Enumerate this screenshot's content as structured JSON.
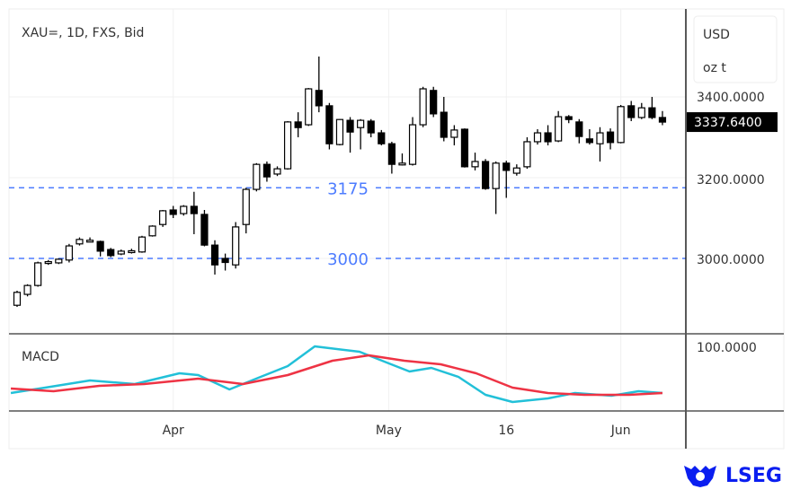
{
  "header": {
    "title": "XAU=, 1D, FXS, Bid"
  },
  "axis": {
    "currency": "USD",
    "unit": "oz t",
    "price_labels": [
      "3400.0000",
      "3200.0000",
      "3000.0000"
    ],
    "last_price": "3337.6400",
    "macd_label": "MACD",
    "macd_tick": "100.0000"
  },
  "brand": {
    "name": "LSEG"
  },
  "chart_data": [
    {
      "type": "candlestick",
      "title": "XAU=, 1D, FXS, Bid",
      "ylabel": "USD oz t",
      "ylim": [
        2830,
        3540
      ],
      "yticks": [
        3000,
        3200,
        3400
      ],
      "xticks": [
        {
          "label": "Apr",
          "index": 15
        },
        {
          "label": "May",
          "index": 35.7
        },
        {
          "label": "16",
          "index": 47
        },
        {
          "label": "Jun",
          "index": 58
        }
      ],
      "hlines": [
        {
          "value": 3175,
          "label": "3175",
          "color": "#4d7cff"
        },
        {
          "value": 3000,
          "label": "3000",
          "color": "#4d7cff"
        }
      ],
      "last": 3337.64,
      "ohlc": [
        [
          2884,
          2920,
          2880,
          2916
        ],
        [
          2911,
          2936,
          2906,
          2933
        ],
        [
          2933,
          2992,
          2930,
          2989
        ],
        [
          2990,
          2996,
          2984,
          2992
        ],
        [
          2989,
          3000,
          2986,
          2998
        ],
        [
          2996,
          3036,
          2990,
          3031
        ],
        [
          3036,
          3052,
          3032,
          3047
        ],
        [
          3044,
          3052,
          3040,
          3045
        ],
        [
          3042,
          3044,
          3005,
          3018
        ],
        [
          3022,
          3026,
          3003,
          3007
        ],
        [
          3011,
          3022,
          3008,
          3018
        ],
        [
          3018,
          3024,
          3012,
          3019
        ],
        [
          3016,
          3056,
          3014,
          3053
        ],
        [
          3056,
          3082,
          3054,
          3080
        ],
        [
          3084,
          3120,
          3078,
          3118
        ],
        [
          3120,
          3130,
          3100,
          3109
        ],
        [
          3111,
          3132,
          3106,
          3129
        ],
        [
          3129,
          3165,
          3060,
          3111
        ],
        [
          3109,
          3120,
          3030,
          3033
        ],
        [
          3033,
          3045,
          2960,
          2984
        ],
        [
          3000,
          3012,
          2970,
          2990
        ],
        [
          2984,
          3090,
          2975,
          3078
        ],
        [
          3084,
          3175,
          3062,
          3171
        ],
        [
          3171,
          3236,
          3166,
          3233
        ],
        [
          3233,
          3240,
          3190,
          3202
        ],
        [
          3209,
          3228,
          3204,
          3222
        ],
        [
          3222,
          3340,
          3220,
          3338
        ],
        [
          3338,
          3362,
          3300,
          3324
        ],
        [
          3331,
          3422,
          3328,
          3420
        ],
        [
          3416,
          3500,
          3362,
          3378
        ],
        [
          3378,
          3385,
          3270,
          3284
        ],
        [
          3282,
          3345,
          3280,
          3344
        ],
        [
          3342,
          3350,
          3262,
          3313
        ],
        [
          3324,
          3345,
          3270,
          3342
        ],
        [
          3340,
          3345,
          3300,
          3311
        ],
        [
          3311,
          3318,
          3280,
          3284
        ],
        [
          3284,
          3289,
          3210,
          3233
        ],
        [
          3236,
          3260,
          3230,
          3236
        ],
        [
          3233,
          3350,
          3230,
          3331
        ],
        [
          3331,
          3425,
          3325,
          3420
        ],
        [
          3416,
          3425,
          3350,
          3358
        ],
        [
          3362,
          3400,
          3290,
          3300
        ],
        [
          3300,
          3330,
          3280,
          3318
        ],
        [
          3320,
          3322,
          3225,
          3227
        ],
        [
          3227,
          3262,
          3218,
          3240
        ],
        [
          3240,
          3246,
          3170,
          3173
        ],
        [
          3173,
          3240,
          3110,
          3236
        ],
        [
          3236,
          3242,
          3150,
          3218
        ],
        [
          3211,
          3233,
          3205,
          3224
        ],
        [
          3227,
          3300,
          3222,
          3289
        ],
        [
          3289,
          3320,
          3282,
          3311
        ],
        [
          3311,
          3330,
          3280,
          3289
        ],
        [
          3291,
          3365,
          3288,
          3351
        ],
        [
          3351,
          3355,
          3335,
          3344
        ],
        [
          3338,
          3345,
          3285,
          3302
        ],
        [
          3296,
          3320,
          3282,
          3287
        ],
        [
          3284,
          3325,
          3240,
          3311
        ],
        [
          3313,
          3322,
          3270,
          3287
        ],
        [
          3287,
          3380,
          3285,
          3376
        ],
        [
          3378,
          3390,
          3340,
          3349
        ],
        [
          3349,
          3385,
          3345,
          3373
        ],
        [
          3373,
          3400,
          3345,
          3349
        ],
        [
          3349,
          3365,
          3330,
          3337.64
        ]
      ]
    },
    {
      "type": "line",
      "title": "MACD",
      "ylim": [
        14,
        114
      ],
      "yticks": [
        100
      ],
      "series": [
        {
          "name": "MACD",
          "color": "#22c0d8",
          "x": [
            -0.6,
            2.7,
            7,
            11.3,
            15.6,
            17.4,
            20.4,
            23.4,
            26,
            28.6,
            32.9,
            35.5,
            37.7,
            39.8,
            42.4,
            45,
            47.6,
            51,
            53.6,
            57.1,
            59.7,
            62
          ],
          "values": [
            48,
            54,
            62,
            58,
            70,
            68,
            52,
            66,
            78,
            100,
            94,
            82,
            72,
            76,
            66,
            46,
            38,
            42,
            48,
            45,
            50,
            48
          ]
        },
        {
          "name": "Signal",
          "color": "#ee3344",
          "x": [
            -0.6,
            3.5,
            7.9,
            12.2,
            17.4,
            21.7,
            26,
            30.3,
            33.8,
            37.2,
            40.7,
            44.1,
            47.6,
            51,
            54.5,
            58.8,
            62
          ],
          "values": [
            53,
            50,
            56,
            58,
            64,
            58,
            68,
            84,
            90,
            84,
            80,
            70,
            54,
            48,
            46,
            46,
            48
          ]
        }
      ]
    }
  ]
}
